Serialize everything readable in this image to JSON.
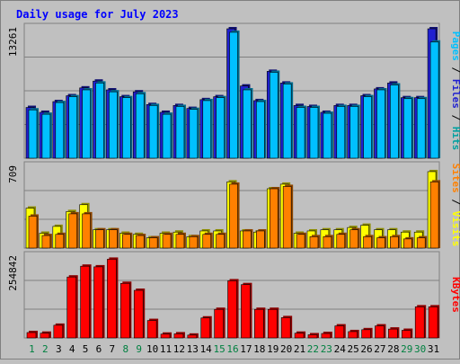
{
  "chart_data": [
    {
      "type": "bar",
      "title": "Daily usage for July 2023",
      "categories": [
        "1",
        "2",
        "3",
        "4",
        "5",
        "6",
        "7",
        "8",
        "9",
        "10",
        "11",
        "12",
        "13",
        "14",
        "15",
        "16",
        "17",
        "18",
        "19",
        "20",
        "21",
        "22",
        "23",
        "24",
        "25",
        "26",
        "27",
        "28",
        "29",
        "30",
        "31"
      ],
      "weekend_days": [
        "1",
        "2",
        "8",
        "9",
        "15",
        "16",
        "22",
        "23",
        "29",
        "30"
      ],
      "ylabel_max": "13261",
      "ylim": [
        0,
        13261
      ],
      "series": [
        {
          "name": "Hits",
          "color": "#00a0a0",
          "values": [
            5200,
            4700,
            5800,
            6400,
            7200,
            7900,
            7000,
            6300,
            6800,
            5500,
            4700,
            5400,
            5100,
            6000,
            6300,
            13261,
            7400,
            5900,
            8900,
            7700,
            5400,
            5300,
            4700,
            5400,
            5400,
            6400,
            7100,
            7700,
            6200,
            6200,
            13261
          ]
        },
        {
          "name": "Files",
          "color": "#2020d0",
          "values": [
            5200,
            4700,
            5800,
            6400,
            7200,
            7900,
            7000,
            6300,
            6800,
            5500,
            4700,
            5400,
            5100,
            6000,
            6300,
            13261,
            7400,
            5900,
            8900,
            7700,
            5400,
            5300,
            4700,
            5400,
            5400,
            6400,
            7100,
            7700,
            6200,
            6200,
            13261
          ]
        },
        {
          "name": "Pages",
          "color": "#00c0ff",
          "values": [
            4950,
            4500,
            5700,
            6300,
            7000,
            7700,
            6800,
            6200,
            6600,
            5400,
            4500,
            5300,
            5000,
            5900,
            6200,
            12900,
            7000,
            5800,
            8800,
            7600,
            5200,
            5200,
            4600,
            5300,
            5300,
            6300,
            7000,
            7500,
            6100,
            6100,
            11900
          ]
        }
      ]
    },
    {
      "type": "bar",
      "categories": [
        "1",
        "2",
        "3",
        "4",
        "5",
        "6",
        "7",
        "8",
        "9",
        "10",
        "11",
        "12",
        "13",
        "14",
        "15",
        "16",
        "17",
        "18",
        "19",
        "20",
        "21",
        "22",
        "23",
        "24",
        "25",
        "26",
        "27",
        "28",
        "29",
        "30",
        "31"
      ],
      "ylabel_max": "709",
      "ylim": [
        0,
        709
      ],
      "series": [
        {
          "name": "Visits",
          "color": "#ffff00",
          "values": [
            350,
            130,
            190,
            320,
            380,
            160,
            160,
            130,
            120,
            90,
            130,
            140,
            100,
            150,
            150,
            580,
            150,
            140,
            520,
            560,
            130,
            150,
            160,
            160,
            180,
            200,
            160,
            160,
            140,
            140,
            670
          ]
        },
        {
          "name": "Sites",
          "color": "#ff8000",
          "values": [
            280,
            110,
            120,
            300,
            300,
            160,
            160,
            120,
            110,
            90,
            120,
            120,
            100,
            120,
            120,
            560,
            150,
            150,
            520,
            540,
            120,
            100,
            100,
            120,
            160,
            100,
            90,
            100,
            80,
            90,
            580
          ]
        }
      ]
    },
    {
      "type": "bar",
      "categories": [
        "1",
        "2",
        "3",
        "4",
        "5",
        "6",
        "7",
        "8",
        "9",
        "10",
        "11",
        "12",
        "13",
        "14",
        "15",
        "16",
        "17",
        "18",
        "19",
        "20",
        "21",
        "22",
        "23",
        "24",
        "25",
        "26",
        "27",
        "28",
        "29",
        "30",
        "31"
      ],
      "ylabel_max": "254842",
      "ylim": [
        0,
        254842
      ],
      "series": [
        {
          "name": "KBytes",
          "color": "#ff0000",
          "values": [
            17000,
            15000,
            40000,
            192000,
            226000,
            224000,
            248000,
            172000,
            150000,
            55000,
            12000,
            13000,
            9000,
            63000,
            90000,
            180000,
            168000,
            90000,
            90000,
            64000,
            15000,
            10000,
            14000,
            38000,
            20000,
            26000,
            38000,
            28000,
            24000,
            98000,
            98000
          ]
        }
      ]
    }
  ]
}
